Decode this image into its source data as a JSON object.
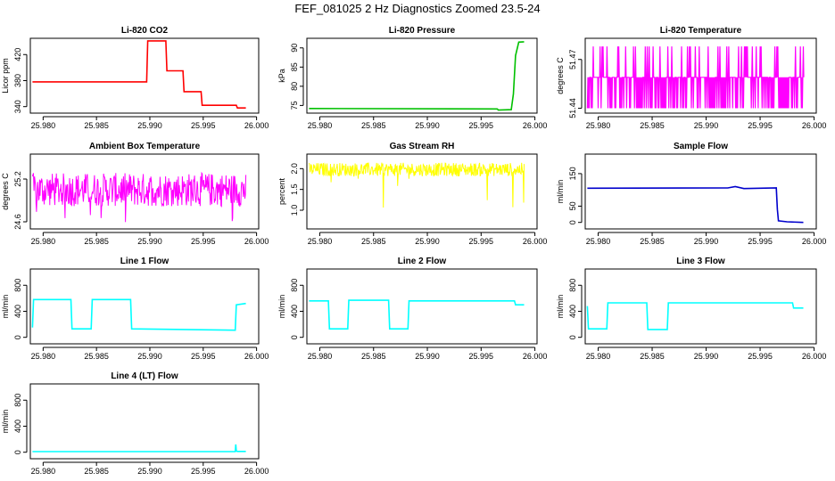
{
  "page": {
    "title": "FEF_081025  2 Hz Diagnostics Zoomed 23.5-24"
  },
  "x_ticks": [
    "25.980",
    "25.985",
    "25.990",
    "25.995",
    "26.000"
  ],
  "chart_data": [
    {
      "type": "line",
      "title": "Li-820 CO2",
      "ylabel": "Licor ppm",
      "color": "#ff0000",
      "xlim": [
        25.9788,
        26.0002
      ],
      "ylim": [
        330,
        445
      ],
      "yticks": [
        "340",
        "380",
        "420"
      ],
      "yticks_values": [
        340,
        380,
        420
      ],
      "series": [
        {
          "x": [
            25.979,
            25.9897,
            25.9898,
            25.9915,
            25.9916,
            25.9931,
            25.9932,
            25.9948,
            25.9949,
            25.9981,
            25.9982,
            25.999
          ],
          "y": [
            378,
            378,
            441,
            441,
            395,
            395,
            363,
            363,
            342,
            342,
            338,
            338
          ]
        }
      ]
    },
    {
      "type": "line",
      "title": "Li-820 Pressure",
      "ylabel": "kPa",
      "color": "#00c000",
      "xlim": [
        25.9788,
        26.0002
      ],
      "ylim": [
        73,
        92.5
      ],
      "yticks": [
        "75",
        "80",
        "85",
        "90"
      ],
      "yticks_values": [
        75,
        80,
        85,
        90
      ],
      "series": [
        {
          "x": [
            25.979,
            25.9965,
            25.9966,
            25.9978,
            25.998,
            25.9982,
            25.9985,
            25.999
          ],
          "y": [
            74.2,
            74.1,
            73.8,
            73.9,
            78,
            88,
            91.5,
            91.6
          ]
        }
      ]
    },
    {
      "type": "line",
      "title": "Li-820 Temperature",
      "ylabel": "degrees C",
      "color": "#ff00ff",
      "xlim": [
        25.9788,
        26.0002
      ],
      "ylim": [
        51.437,
        51.483
      ],
      "yticks": [
        "51.44",
        "51.47"
      ],
      "yticks_values": [
        51.44,
        51.47
      ],
      "levels": [
        51.44,
        51.459,
        51.478
      ],
      "noise": "levels"
    },
    {
      "type": "line",
      "title": "Ambient Box Temperature",
      "ylabel": "degrees C",
      "color": "#ff00ff",
      "xlim": [
        25.9788,
        26.0002
      ],
      "ylim": [
        24.5,
        25.55
      ],
      "yticks": [
        "24.6",
        "25.2"
      ],
      "yticks_values": [
        24.6,
        25.2
      ],
      "base": 25.05,
      "noise": "dense"
    },
    {
      "type": "line",
      "title": "Gas Stream RH",
      "ylabel": "percent",
      "color": "#ffff00",
      "xlim": [
        25.9788,
        26.0002
      ],
      "ylim": [
        0.55,
        2.35
      ],
      "yticks": [
        "1.0",
        "1.5",
        "2.0"
      ],
      "yticks_values": [
        1.0,
        1.5,
        2.0
      ],
      "base": 1.98,
      "noise": "dense-down"
    },
    {
      "type": "line",
      "title": "Sample Flow",
      "ylabel": "ml/min",
      "color": "#0000cc",
      "xlim": [
        25.9788,
        26.0002
      ],
      "ylim": [
        -20,
        210
      ],
      "yticks": [
        "0",
        "50",
        "150"
      ],
      "yticks_values": [
        0,
        50,
        150
      ],
      "series": [
        {
          "x": [
            25.979,
            25.992,
            25.9927,
            25.9935,
            25.9965,
            25.9966,
            25.9967,
            25.9975,
            25.999
          ],
          "y": [
            105,
            106,
            110,
            104,
            106,
            40,
            5,
            2,
            0
          ]
        }
      ]
    },
    {
      "type": "line",
      "title": "Line 1 Flow",
      "ylabel": "ml/min",
      "color": "#00ffff",
      "xlim": [
        25.9788,
        26.0002
      ],
      "ylim": [
        -100,
        1050
      ],
      "yticks": [
        "0",
        "400",
        "800"
      ],
      "yticks_values": [
        0,
        400,
        800
      ],
      "series": [
        {
          "x": [
            25.979,
            25.9791,
            25.9826,
            25.9827,
            25.9845,
            25.9846,
            25.9882,
            25.9883,
            25.998,
            25.9981,
            25.999
          ],
          "y": [
            150,
            580,
            580,
            130,
            130,
            580,
            580,
            130,
            110,
            500,
            520
          ]
        }
      ]
    },
    {
      "type": "line",
      "title": "Line 2 Flow",
      "ylabel": "ml/min",
      "color": "#00ffff",
      "xlim": [
        25.9788,
        26.0002
      ],
      "ylim": [
        -100,
        1050
      ],
      "yticks": [
        "0",
        "400",
        "800"
      ],
      "yticks_values": [
        0,
        400,
        800
      ],
      "series": [
        {
          "x": [
            25.979,
            25.9808,
            25.9809,
            25.9826,
            25.9827,
            25.9864,
            25.9865,
            25.9882,
            25.9883,
            25.9981,
            25.9982,
            25.999
          ],
          "y": [
            560,
            560,
            130,
            130,
            570,
            570,
            130,
            130,
            560,
            560,
            500,
            500
          ]
        }
      ]
    },
    {
      "type": "line",
      "title": "Line 3 Flow",
      "ylabel": "ml/min",
      "color": "#00ffff",
      "xlim": [
        25.9788,
        26.0002
      ],
      "ylim": [
        -100,
        1050
      ],
      "yticks": [
        "0",
        "400",
        "800"
      ],
      "yticks_values": [
        0,
        400,
        800
      ],
      "series": [
        {
          "x": [
            25.979,
            25.9791,
            25.9808,
            25.9809,
            25.9845,
            25.9846,
            25.9864,
            25.9865,
            25.998,
            25.9981,
            25.999
          ],
          "y": [
            480,
            130,
            130,
            530,
            530,
            120,
            120,
            530,
            530,
            450,
            450
          ]
        }
      ]
    },
    {
      "type": "line",
      "title": "Line 4 (LT) Flow",
      "ylabel": "ml/min",
      "color": "#00ffff",
      "xlim": [
        25.9788,
        26.0002
      ],
      "ylim": [
        -100,
        1050
      ],
      "yticks": [
        "0",
        "400",
        "800"
      ],
      "yticks_values": [
        0,
        400,
        800
      ],
      "series": [
        {
          "x": [
            25.979,
            25.998,
            25.99805,
            25.9981,
            25.9982,
            25.999
          ],
          "y": [
            10,
            10,
            120,
            20,
            12,
            12
          ]
        }
      ]
    }
  ]
}
